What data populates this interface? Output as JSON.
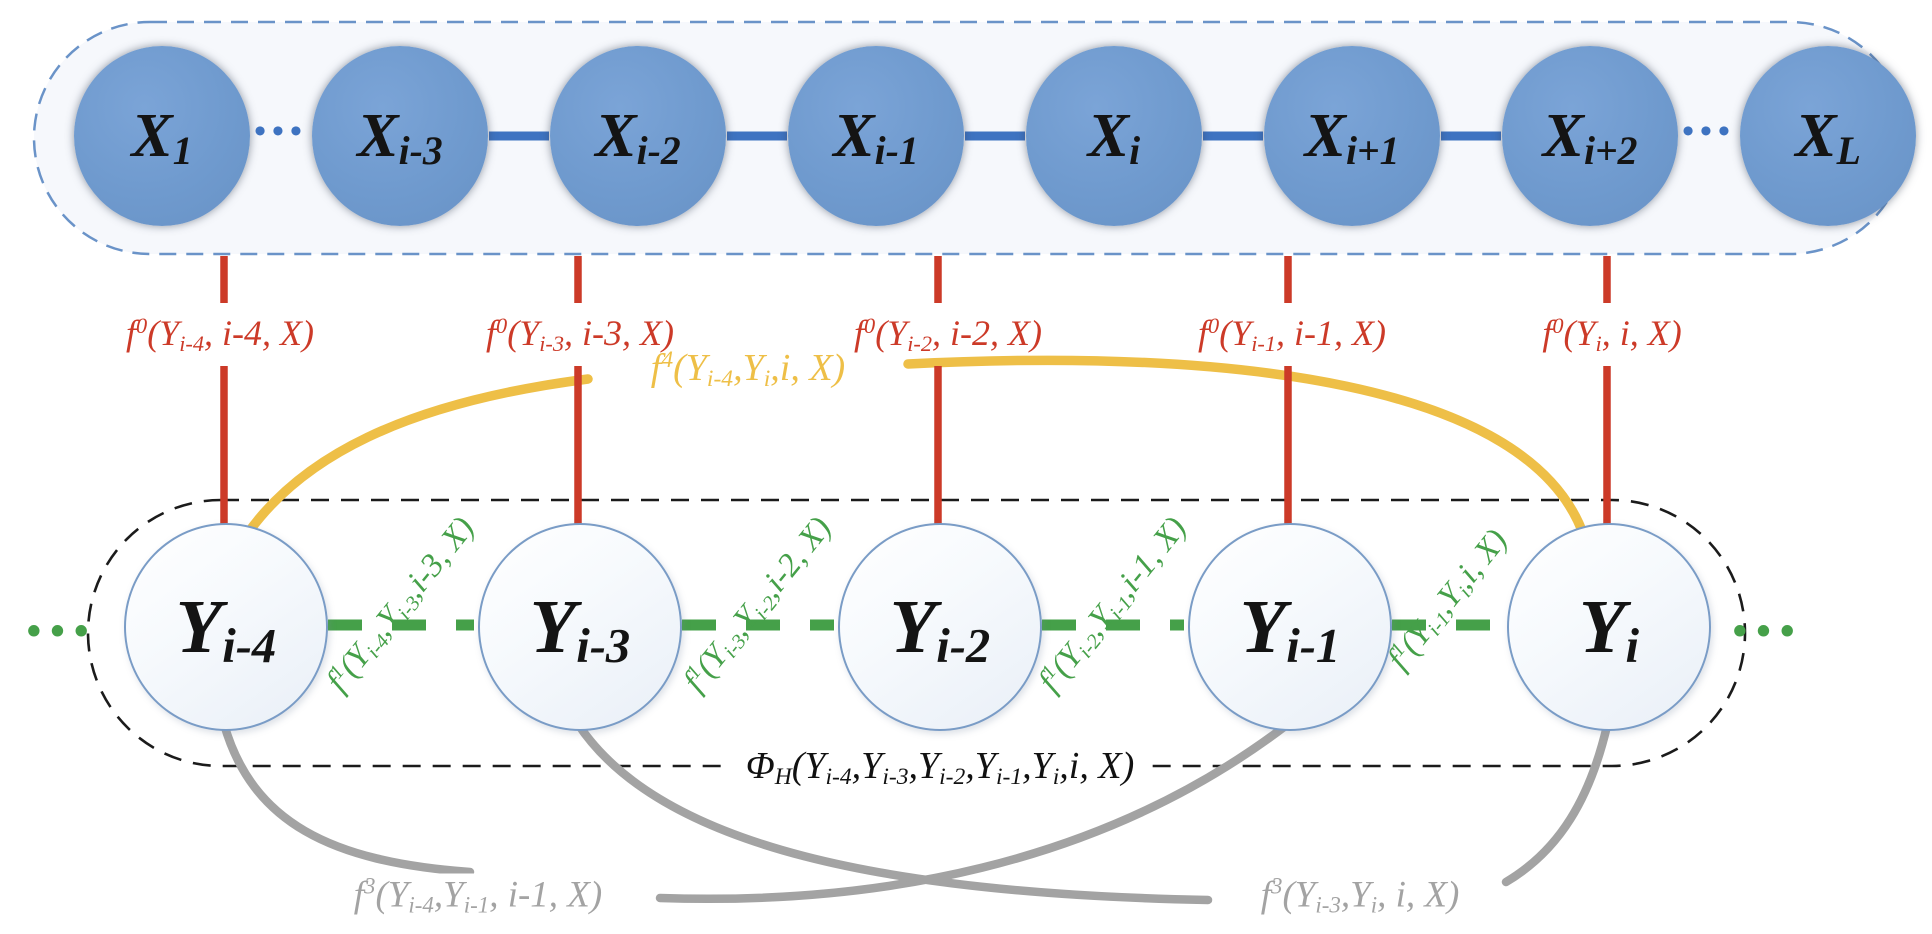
{
  "figure": {
    "description": "Factor graph of a linear-chain CRF with observation sequence X and label sequence Y, showing unary f0, pairwise f1, skip f3, long-range f4 and window PhiH factor functions"
  },
  "colors": {
    "node-blue": "#6f9ace",
    "link-blue": "#3e73c1",
    "box-blue": "#6a93c8",
    "red": "#cc3a28",
    "yellow": "#eebf47",
    "green": "#45a049",
    "gray": "#a3a3a3",
    "black": "#1b1b1b",
    "y-stroke": "#7a9cc6"
  },
  "x_row": {
    "ellipsis_left": "•••",
    "ellipsis_right": "•••",
    "nodes": [
      {
        "id": "X1",
        "parts": [
          {
            "t": "X"
          },
          {
            "t": "1",
            "s": "sub"
          }
        ]
      },
      {
        "id": "Xi-3",
        "parts": [
          {
            "t": "X"
          },
          {
            "t": "i-3",
            "s": "sub"
          }
        ]
      },
      {
        "id": "Xi-2",
        "parts": [
          {
            "t": "X"
          },
          {
            "t": "i-2",
            "s": "sub"
          }
        ]
      },
      {
        "id": "Xi-1",
        "parts": [
          {
            "t": "X"
          },
          {
            "t": "i-1",
            "s": "sub"
          }
        ]
      },
      {
        "id": "Xi",
        "parts": [
          {
            "t": "X"
          },
          {
            "t": "i",
            "s": "sub"
          }
        ]
      },
      {
        "id": "Xi+1",
        "parts": [
          {
            "t": "X"
          },
          {
            "t": "i+1",
            "s": "sub"
          }
        ]
      },
      {
        "id": "Xi+2",
        "parts": [
          {
            "t": "X"
          },
          {
            "t": "i+2",
            "s": "sub"
          }
        ]
      },
      {
        "id": "XL",
        "parts": [
          {
            "t": "X"
          },
          {
            "t": "L",
            "s": "sub"
          }
        ]
      }
    ]
  },
  "y_row": {
    "ellipsis_left": "•••",
    "ellipsis_right": "•••",
    "nodes": [
      {
        "id": "Yi-4",
        "parts": [
          {
            "t": "Y"
          },
          {
            "t": "i-4",
            "s": "sub"
          }
        ]
      },
      {
        "id": "Yi-3",
        "parts": [
          {
            "t": "Y"
          },
          {
            "t": "i-3",
            "s": "sub"
          }
        ]
      },
      {
        "id": "Yi-2",
        "parts": [
          {
            "t": "Y"
          },
          {
            "t": "i-2",
            "s": "sub"
          }
        ]
      },
      {
        "id": "Yi-1",
        "parts": [
          {
            "t": "Y"
          },
          {
            "t": "i-1",
            "s": "sub"
          }
        ]
      },
      {
        "id": "Yi",
        "parts": [
          {
            "t": "Y"
          },
          {
            "t": "i",
            "s": "sub"
          }
        ]
      }
    ]
  },
  "labels": {
    "f0": [
      {
        "parts": [
          {
            "t": "f"
          },
          {
            "t": "0",
            "s": "sup"
          },
          {
            "t": "(Y"
          },
          {
            "t": "i-4",
            "s": "sub"
          },
          {
            "t": ", i-4, X)"
          }
        ]
      },
      {
        "parts": [
          {
            "t": "f"
          },
          {
            "t": "0",
            "s": "sup"
          },
          {
            "t": "(Y"
          },
          {
            "t": "i-3",
            "s": "sub"
          },
          {
            "t": ", i-3, X)"
          }
        ]
      },
      {
        "parts": [
          {
            "t": "f"
          },
          {
            "t": "0",
            "s": "sup"
          },
          {
            "t": "(Y"
          },
          {
            "t": "i-2",
            "s": "sub"
          },
          {
            "t": ", i-2, X)"
          }
        ]
      },
      {
        "parts": [
          {
            "t": "f"
          },
          {
            "t": "0",
            "s": "sup"
          },
          {
            "t": "(Y"
          },
          {
            "t": "i-1",
            "s": "sub"
          },
          {
            "t": ", i-1, X)"
          }
        ]
      },
      {
        "parts": [
          {
            "t": "f"
          },
          {
            "t": "0",
            "s": "sup"
          },
          {
            "t": "(Y"
          },
          {
            "t": "i",
            "s": "sub"
          },
          {
            "t": ", i, X)"
          }
        ]
      }
    ],
    "f4": {
      "parts": [
        {
          "t": "f"
        },
        {
          "t": "4",
          "s": "sup"
        },
        {
          "t": "(Y"
        },
        {
          "t": "i-4",
          "s": "sub"
        },
        {
          "t": ",Y"
        },
        {
          "t": "i",
          "s": "sub"
        },
        {
          "t": ",i, X)"
        }
      ]
    },
    "f1": [
      {
        "parts": [
          {
            "t": "f"
          },
          {
            "t": "1",
            "s": "sup"
          },
          {
            "t": "(Y"
          },
          {
            "t": "i-4",
            "s": "sub"
          },
          {
            "t": ",Y"
          },
          {
            "t": "i-3",
            "s": "sub"
          },
          {
            "t": ",i-3, X)"
          }
        ]
      },
      {
        "parts": [
          {
            "t": "f"
          },
          {
            "t": "1",
            "s": "sup"
          },
          {
            "t": "(Y"
          },
          {
            "t": "i-3",
            "s": "sub"
          },
          {
            "t": ",Y"
          },
          {
            "t": "i-2",
            "s": "sub"
          },
          {
            "t": ",i-2, X)"
          }
        ]
      },
      {
        "parts": [
          {
            "t": "f"
          },
          {
            "t": "1",
            "s": "sup"
          },
          {
            "t": "(Y"
          },
          {
            "t": "i-2",
            "s": "sub"
          },
          {
            "t": ",Y"
          },
          {
            "t": "i-1",
            "s": "sub"
          },
          {
            "t": ",i-1, X)"
          }
        ]
      },
      {
        "parts": [
          {
            "t": "f"
          },
          {
            "t": "1",
            "s": "sup"
          },
          {
            "t": "(Y"
          },
          {
            "t": "i-1",
            "s": "sub"
          },
          {
            "t": ",Y"
          },
          {
            "t": "i",
            "s": "sub"
          },
          {
            "t": ",i, X)"
          }
        ]
      }
    ],
    "f3": [
      {
        "parts": [
          {
            "t": "f"
          },
          {
            "t": "3",
            "s": "sup"
          },
          {
            "t": "(Y"
          },
          {
            "t": "i-4",
            "s": "sub"
          },
          {
            "t": ",Y"
          },
          {
            "t": "i-1",
            "s": "sub"
          },
          {
            "t": ", i-1, X)"
          }
        ]
      },
      {
        "parts": [
          {
            "t": "f"
          },
          {
            "t": "3",
            "s": "sup"
          },
          {
            "t": "(Y"
          },
          {
            "t": "i-3",
            "s": "sub"
          },
          {
            "t": ",Y"
          },
          {
            "t": "i",
            "s": "sub"
          },
          {
            "t": ", i, X)"
          }
        ]
      }
    ],
    "phi": {
      "parts": [
        {
          "t": "Φ"
        },
        {
          "t": "H",
          "s": "sub"
        },
        {
          "t": "(Y"
        },
        {
          "t": "i-4",
          "s": "sub"
        },
        {
          "t": ",Y"
        },
        {
          "t": "i-3",
          "s": "sub"
        },
        {
          "t": ",Y"
        },
        {
          "t": "i-2",
          "s": "sub"
        },
        {
          "t": ",Y"
        },
        {
          "t": "i-1",
          "s": "sub"
        },
        {
          "t": ",Y"
        },
        {
          "t": "i",
          "s": "sub"
        },
        {
          "t": ",i, X)"
        }
      ]
    }
  }
}
